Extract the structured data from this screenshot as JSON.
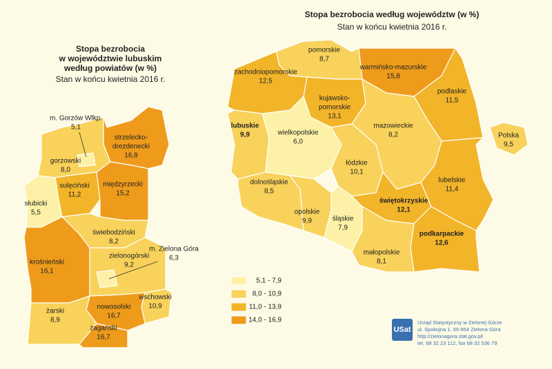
{
  "right_map": {
    "title": "Stopa bezrobocia według województw (w %)",
    "subtitle": "Stan w końcu kwietnia 2016 r.",
    "regions": [
      {
        "name": "pomorskie",
        "value": "8,7"
      },
      {
        "name": "zachodniopomorskie",
        "value": "12,5"
      },
      {
        "name": "warmińsko-mazurskie",
        "value": "15,8"
      },
      {
        "name": "podlaskie",
        "value": "11,5"
      },
      {
        "name": [
          "kujawsko-",
          "pomorskie"
        ],
        "value": "13,1"
      },
      {
        "name": "mazowieckie",
        "value": "8,2"
      },
      {
        "name": "lubuskie",
        "value": "9,9"
      },
      {
        "name": "wielkopolskie",
        "value": "6,0"
      },
      {
        "name": "łódzkie",
        "value": "10,1"
      },
      {
        "name": "dolnośląskie",
        "value": "8,5"
      },
      {
        "name": "opolskie",
        "value": "9,9"
      },
      {
        "name": "śląskie",
        "value": "7,9"
      },
      {
        "name": "świętokrzyskie",
        "value": "12,1"
      },
      {
        "name": "lubelskie",
        "value": "11,4"
      },
      {
        "name": "małopolskie",
        "value": "8,1"
      },
      {
        "name": "podkarpackie",
        "value": "12,6"
      },
      {
        "name": "Polska",
        "value": "9,5"
      }
    ]
  },
  "left_map": {
    "title": [
      "Stopa bezrobocia",
      "w województwie lubuskim",
      "według powiatów (w %)"
    ],
    "subtitle": "Stan w końcu kwietnia 2016 r.",
    "regions": [
      {
        "name": [
          "strzelecko-",
          "drezdenecki"
        ],
        "value": "16,8"
      },
      {
        "name": "gorzowski",
        "value": "8,0"
      },
      {
        "name": "m. Gorzów Wlkp.",
        "value": "5,1"
      },
      {
        "name": "sulęciński",
        "value": "11,2"
      },
      {
        "name": "międzyrzecki",
        "value": "15,2"
      },
      {
        "name": "słubicki",
        "value": "5,5"
      },
      {
        "name": "świebodziński",
        "value": "8,2"
      },
      {
        "name": "krośnieński",
        "value": "16,1"
      },
      {
        "name": "zielonogórski",
        "value": "9,2"
      },
      {
        "name": "m. Zielona Góra",
        "value": "6,3"
      },
      {
        "name": "wschowski",
        "value": "10,9"
      },
      {
        "name": "nowosolski",
        "value": "16,7"
      },
      {
        "name": "żarski",
        "value": "8,9"
      },
      {
        "name": "żagański",
        "value": "16,7"
      }
    ]
  },
  "legend": [
    "5,1 - 7,9",
    "8,0 - 10,9",
    "11,0 - 13,9",
    "14,0 - 16,9"
  ],
  "footer": {
    "logo": "USat",
    "lines": [
      "Urząd Statystyczny w Zielonej Górze",
      "ul. Spokojna 1, 65-954 Zielona Góra",
      "http://zielonagora.stat.gov.pl/",
      "tel. 68 32 23 112, fax 68 32 536 79"
    ]
  }
}
